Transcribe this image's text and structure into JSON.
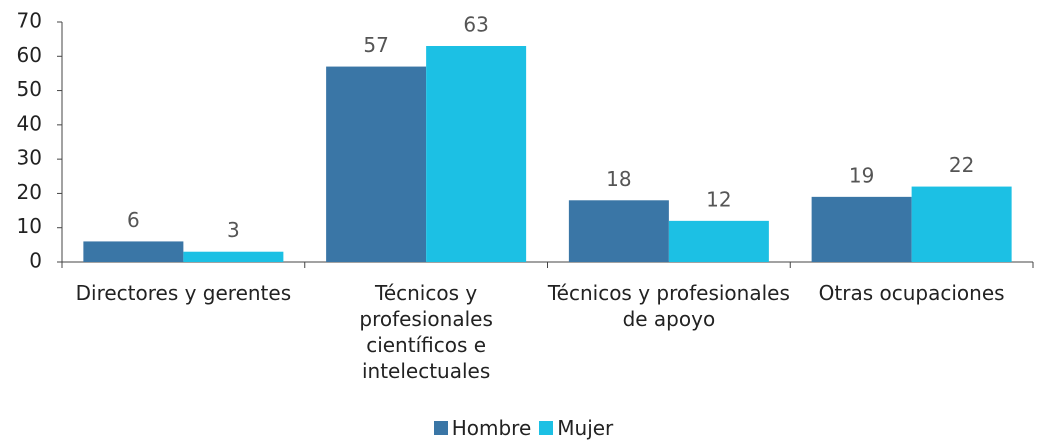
{
  "chart_data": {
    "type": "bar",
    "categories": [
      "Directores y gerentes",
      "Técnicos y profesionales científicos e intelectuales",
      "Técnicos y profesionales de apoyo",
      "Otras ocupaciones"
    ],
    "series": [
      {
        "name": "Hombre",
        "color": "#3a76a6",
        "values": [
          6,
          57,
          18,
          19
        ]
      },
      {
        "name": "Mujer",
        "color": "#1cc0e4",
        "values": [
          3,
          63,
          12,
          22
        ]
      }
    ],
    "ylim": [
      0,
      70
    ],
    "yticks": [
      0,
      10,
      20,
      30,
      40,
      50,
      60,
      70
    ],
    "legend": "bottom"
  }
}
